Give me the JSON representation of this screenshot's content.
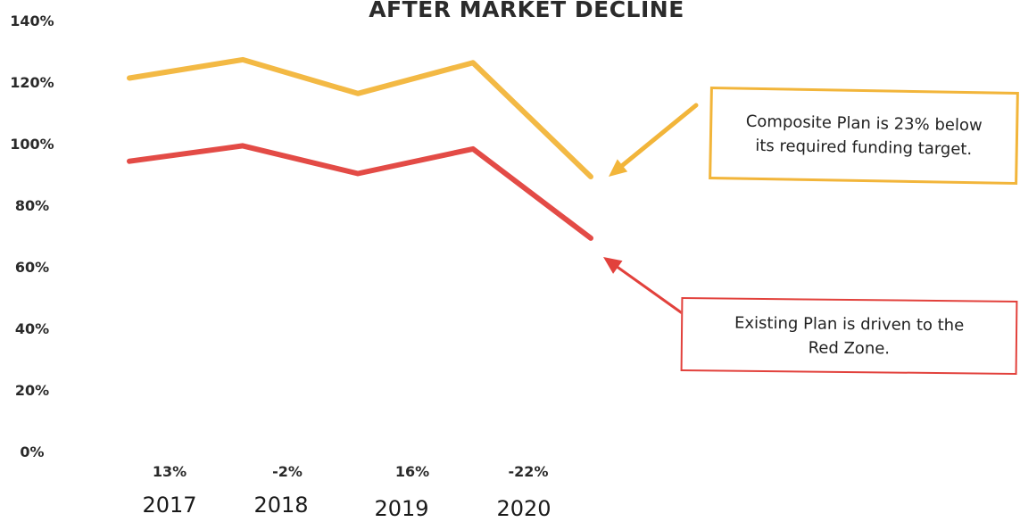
{
  "chart_data": {
    "type": "line",
    "title": "AFTER MARKET DECLINE",
    "xlabel": "",
    "ylabel": "",
    "categories": [
      "2017",
      "2018",
      "2019",
      "2020"
    ],
    "return_labels": [
      "13%",
      "-2%",
      "16%",
      "-22%"
    ],
    "ylim": [
      0,
      140
    ],
    "yticks": [
      "0%",
      "20%",
      "40%",
      "60%",
      "80%",
      "100%",
      "120%",
      "140%"
    ],
    "grid": false,
    "series": [
      {
        "color": "#f2b53a",
        "x": [
          2017.0,
          2017.6,
          2018.5,
          2019.3,
          2020.0
        ],
        "values": [
          121,
          127,
          116,
          126,
          89
        ]
      },
      {
        "color": "#e2413c",
        "x": [
          2017.0,
          2017.6,
          2018.5,
          2019.3,
          2020.0
        ],
        "values": [
          94,
          99,
          90,
          98,
          69
        ]
      }
    ],
    "annotations": [
      {
        "text": "Composite Plan is 23% below\nits required funding target.",
        "color": "#f2b53a"
      },
      {
        "text": "Existing Plan is driven to the\nRed Zone.",
        "color": "#e2413c"
      }
    ]
  }
}
